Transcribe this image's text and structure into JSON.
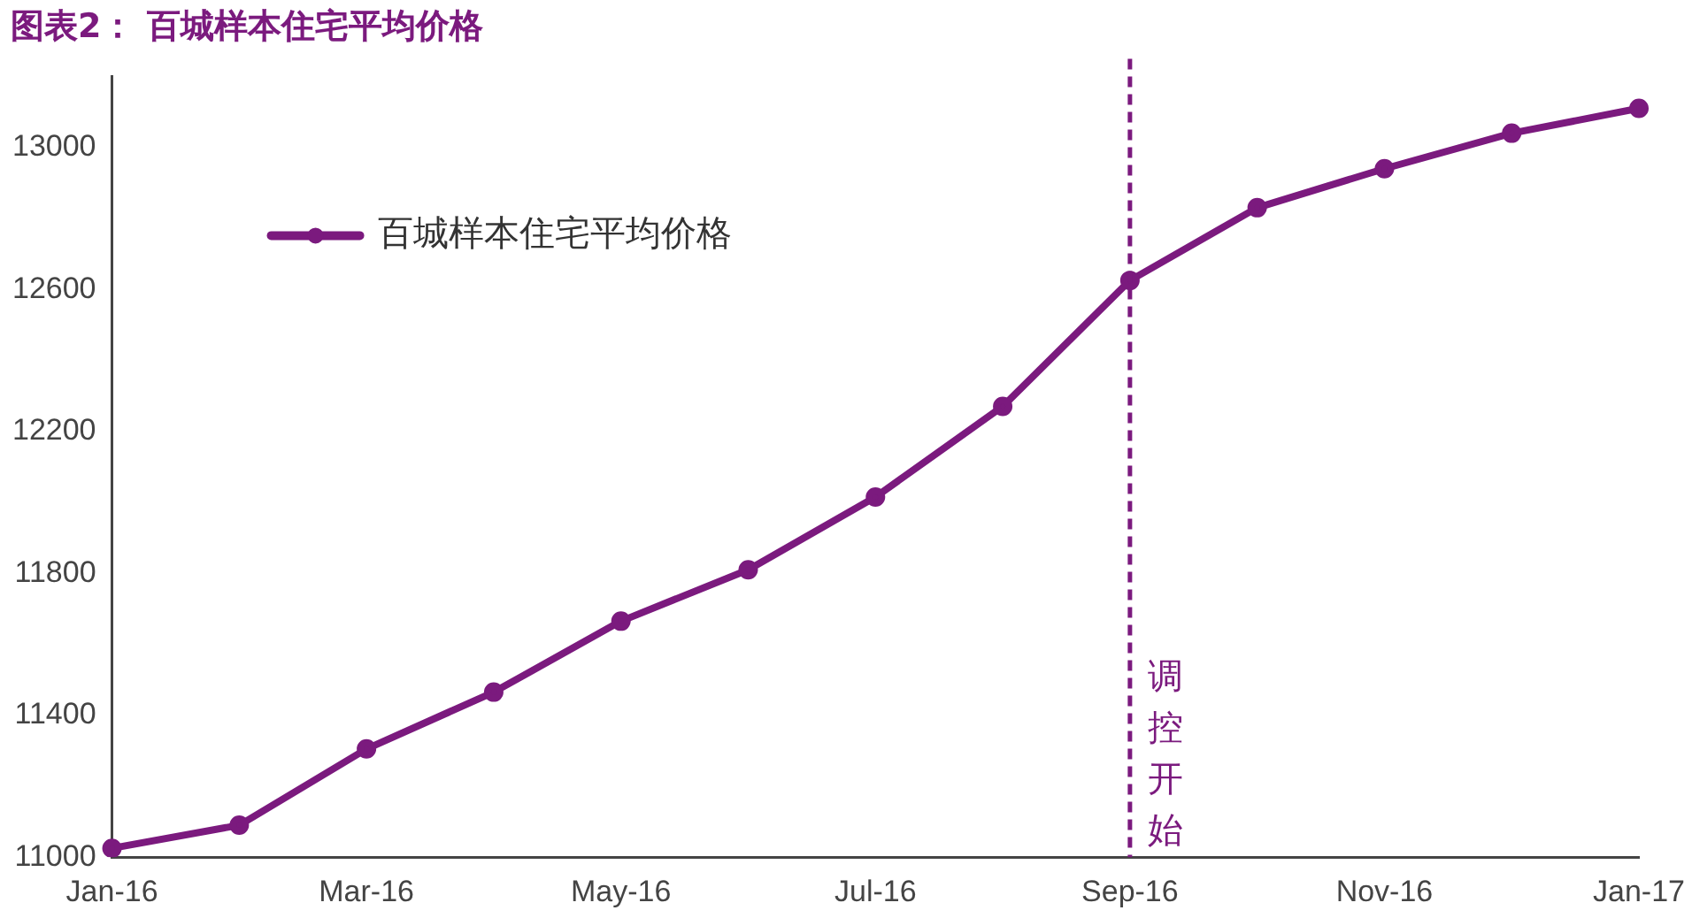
{
  "chart_data": {
    "type": "line",
    "title": "图表2：  百城样本住宅平均价格",
    "categories": [
      "Jan-16",
      null,
      "Mar-16",
      null,
      "May-16",
      null,
      "Jul-16",
      null,
      "Sep-16",
      null,
      "Nov-16",
      null,
      "Jan-17"
    ],
    "series": [
      {
        "name": "百城样本住宅平均价格",
        "color": "#7b1a7e",
        "values": [
          11025,
          11090,
          11305,
          11465,
          11665,
          11810,
          12015,
          12270,
          12625,
          12830,
          12940,
          13040,
          13110
        ]
      }
    ],
    "ylim": [
      11000,
      13200
    ],
    "yticks": [
      11000,
      11400,
      11800,
      12200,
      12600,
      13000
    ],
    "ref_lines": [
      {
        "axis": "x",
        "value": "Sep-16",
        "label": "调控开始",
        "color": "#7b1a7e",
        "line_style": "dashed"
      }
    ],
    "grid": false,
    "legend": "top left",
    "marker": "circle",
    "line_style": "solid"
  }
}
